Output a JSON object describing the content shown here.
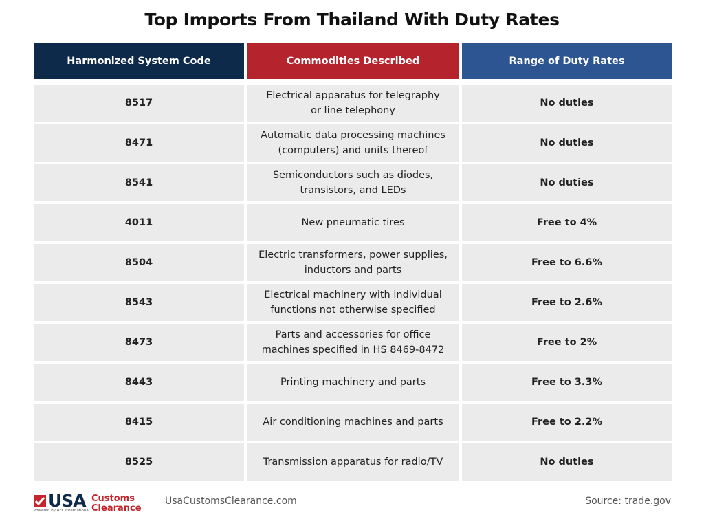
{
  "title": "Top Imports From Thailand With Duty Rates",
  "table": {
    "headers": [
      "Harmonized System Code",
      "Commodities Described",
      "Range of Duty Rates"
    ],
    "rows": [
      {
        "code": "8517",
        "description": [
          "Electrical apparatus for telegraphy",
          "or line telephony"
        ],
        "duty": "No duties"
      },
      {
        "code": "8471",
        "description": [
          "Automatic data processing machines",
          "(computers) and units thereof"
        ],
        "duty": "No duties"
      },
      {
        "code": "8541",
        "description": [
          "Semiconductors such as diodes,",
          "transistors, and LEDs"
        ],
        "duty": "No duties"
      },
      {
        "code": "4011",
        "description": [
          "New pneumatic tires"
        ],
        "duty": "Free to 4%"
      },
      {
        "code": "8504",
        "description": [
          "Electric transformers, power supplies,",
          "inductors and parts"
        ],
        "duty": "Free to 6.6%"
      },
      {
        "code": "8543",
        "description": [
          "Electrical machinery with individual",
          "functions not otherwise specified"
        ],
        "duty": "Free to 2.6%"
      },
      {
        "code": "8473",
        "description": [
          "Parts and accessories for office",
          "machines specified in HS 8469-8472"
        ],
        "duty": "Free to 2%"
      },
      {
        "code": "8443",
        "description": [
          "Printing machinery and parts"
        ],
        "duty": "Free to 3.3%"
      },
      {
        "code": "8415",
        "description": [
          "Air conditioning machines and parts"
        ],
        "duty": "Free to 2.2%"
      },
      {
        "code": "8525",
        "description": [
          "Transmission apparatus for radio/TV"
        ],
        "duty": "No duties"
      }
    ]
  },
  "footer": {
    "logo": {
      "brand": "USA",
      "name_lines": [
        "Customs",
        "Clearance"
      ],
      "tagline": "Powered by AFC International"
    },
    "website": "UsaCustomsClearance.com",
    "source_label": "Source:",
    "source_link": "trade.gov"
  }
}
